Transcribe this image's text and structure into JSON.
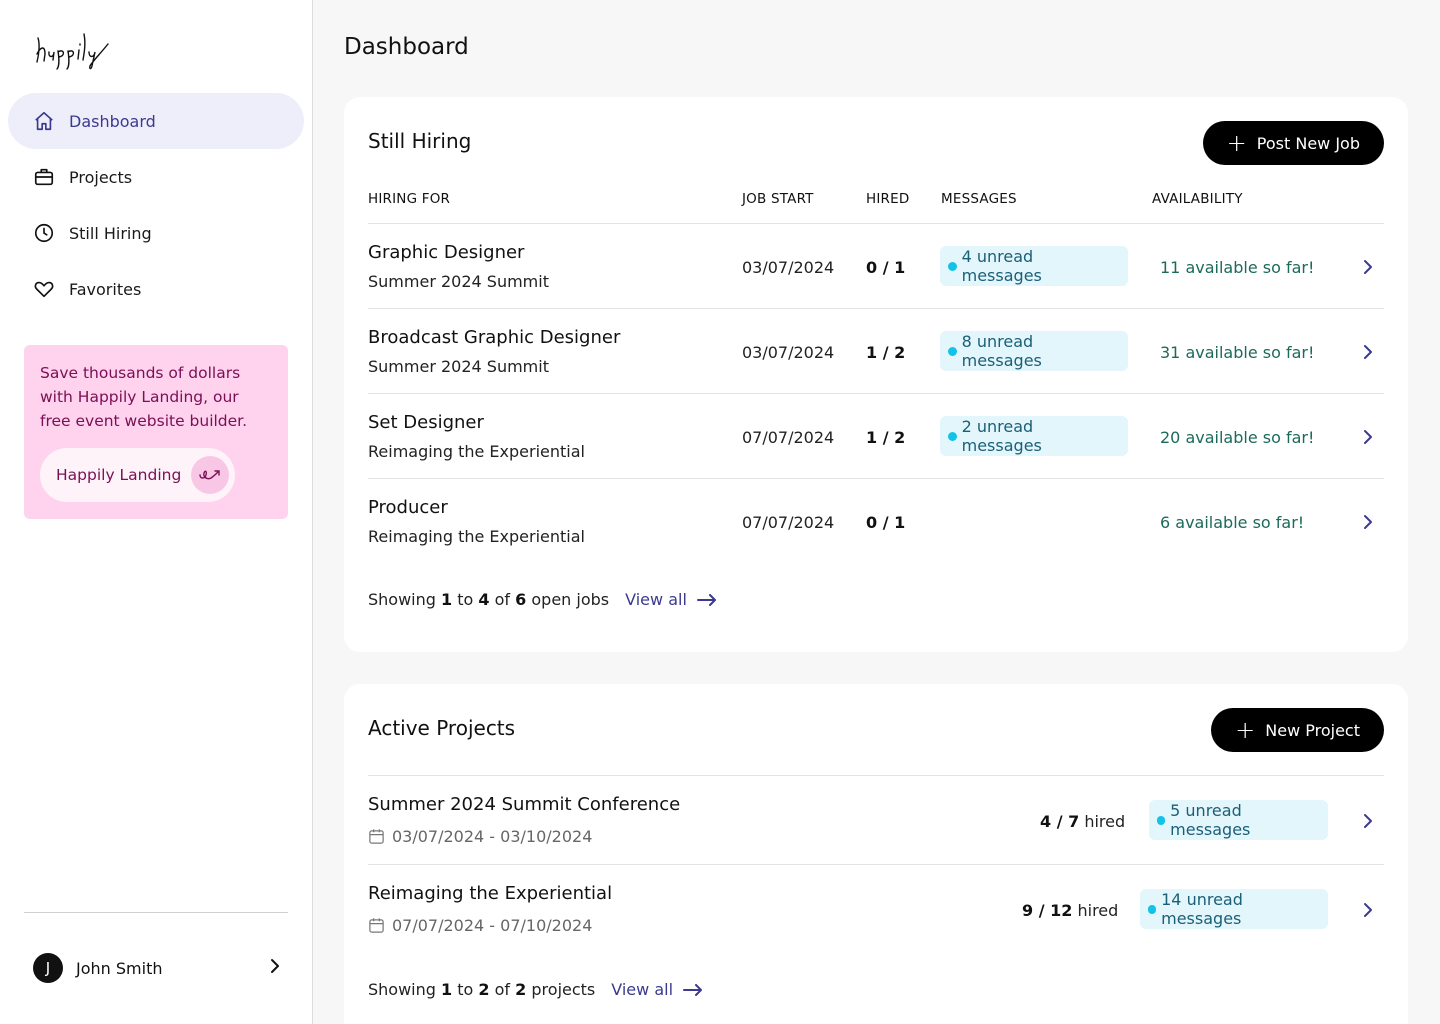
{
  "brand": {
    "logo_text": "happily"
  },
  "nav": {
    "items": [
      {
        "label": "Dashboard",
        "icon": "home-icon",
        "active": true
      },
      {
        "label": "Projects",
        "icon": "briefcase-icon",
        "active": false
      },
      {
        "label": "Still Hiring",
        "icon": "clock-icon",
        "active": false
      },
      {
        "label": "Favorites",
        "icon": "heart-icon",
        "active": false
      }
    ]
  },
  "promo": {
    "text": "Save thousands of dollars with Happily Landing, our free event website builder.",
    "button_label": "Happily Landing"
  },
  "user": {
    "initial": "J",
    "name": "John Smith"
  },
  "page": {
    "title": "Dashboard"
  },
  "hiring": {
    "title": "Still Hiring",
    "button_label": "Post New Job",
    "columns": [
      "HIRING FOR",
      "JOB START",
      "HIRED",
      "MESSAGES",
      "AVAILABILITY"
    ],
    "rows": [
      {
        "job": "Graphic Designer",
        "project": "Summer 2024 Summit",
        "start": "03/07/2024",
        "hired": "0 / 1",
        "messages": "4 unread messages",
        "availability": "11 available so far!"
      },
      {
        "job": "Broadcast Graphic Designer",
        "project": "Summer 2024 Summit",
        "start": "03/07/2024",
        "hired": "1 / 2",
        "messages": "8 unread messages",
        "availability": "31 available so far!"
      },
      {
        "job": "Set Designer",
        "project": "Reimaging the Experiential",
        "start": "07/07/2024",
        "hired": "1 / 2",
        "messages": "2 unread messages",
        "availability": "20 available so far!"
      },
      {
        "job": "Producer",
        "project": "Reimaging the Experiential",
        "start": "07/07/2024",
        "hired": "0 / 1",
        "messages": "",
        "availability": "6 available so far!"
      }
    ],
    "footer": {
      "prefix": "Showing",
      "from": "1",
      "to_word": "to",
      "to": "4",
      "of_word": "of",
      "total": "6",
      "suffix": "open jobs",
      "view_all": "View all"
    }
  },
  "projects": {
    "title": "Active Projects",
    "button_label": "New Project",
    "rows": [
      {
        "name": "Summer 2024 Summit Conference",
        "dates": "03/07/2024 - 03/10/2024",
        "hired_count": "4 / 7",
        "hired_suffix": "hired",
        "messages": "5 unread messages"
      },
      {
        "name": "Reimaging the Experiential",
        "dates": "07/07/2024 - 07/10/2024",
        "hired_count": "9 / 12",
        "hired_suffix": "hired",
        "messages": "14 unread messages"
      }
    ],
    "footer": {
      "prefix": "Showing",
      "from": "1",
      "to_word": "to",
      "to": "2",
      "of_word": "of",
      "total": "2",
      "suffix": "projects",
      "view_all": "View all"
    }
  },
  "colors": {
    "accent": "#3b3a8f",
    "promo_bg": "#ffd2ee",
    "message_badge_bg": "#e3f6fb",
    "message_dot": "#12c3e8",
    "availability_text": "#1c6a5a"
  }
}
